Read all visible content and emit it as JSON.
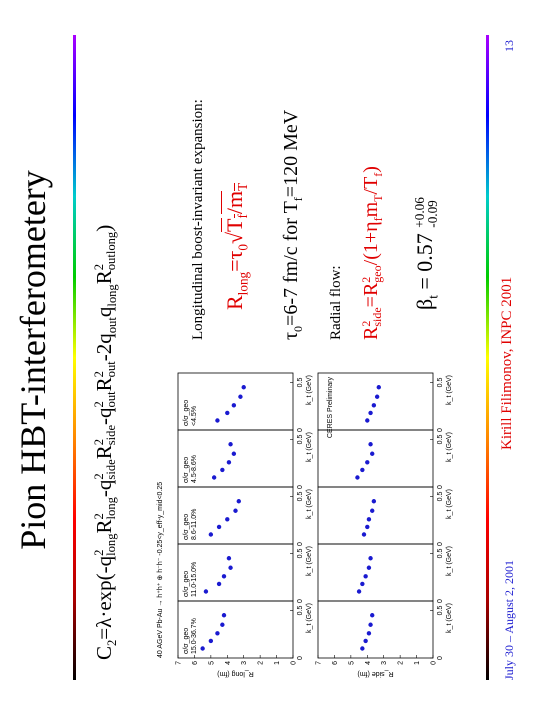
{
  "title": "Pion HBT-interferometery",
  "formula": [
    {
      "t": "C"
    },
    {
      "sub": "2"
    },
    {
      "t": "=λ·exp(-q"
    },
    {
      "sup": "2",
      "sub": "long"
    },
    {
      "t": "R"
    },
    {
      "sup": "2",
      "sub": "long"
    },
    {
      "t": "-q"
    },
    {
      "sup": "2",
      "sub": "side"
    },
    {
      "t": "R"
    },
    {
      "sup": "2",
      "sub": "side"
    },
    {
      "t": "-q"
    },
    {
      "sup": "2",
      "sub": "out"
    },
    {
      "t": "R"
    },
    {
      "sup": "2",
      "sub": "out"
    },
    {
      "t": "-2q"
    },
    {
      "sub": "out"
    },
    {
      "t": "q"
    },
    {
      "sub": "long"
    },
    {
      "t": "R"
    },
    {
      "sup": "2",
      "sub": "outlong"
    },
    {
      "t": ")"
    }
  ],
  "right_text": {
    "heading1": "Longitudinal boost-invariant expansion:",
    "rlong": [
      {
        "t": "R"
      },
      {
        "sub": "long"
      },
      {
        "t": "=τ"
      },
      {
        "sub": "0"
      },
      {
        "t": "√"
      },
      {
        "t": "T",
        "over": true
      },
      {
        "sub": "f",
        "over": true
      },
      {
        "t": "/m",
        "over": true
      },
      {
        "sub": "T",
        "over": true
      }
    ],
    "tau": [
      {
        "t": "τ"
      },
      {
        "sub": "0"
      },
      {
        "t": "=6-7 fm/c for T"
      },
      {
        "sub": "f"
      },
      {
        "t": "=120 MeV"
      }
    ],
    "heading2": "Radial flow:",
    "rside": [
      {
        "t": "R"
      },
      {
        "sup": "2",
        "sub": "side"
      },
      {
        "t": "=R"
      },
      {
        "sup": "2",
        "sub": "geo"
      },
      {
        "t": "/(1+η"
      },
      {
        "sub": "f"
      },
      {
        "t": "m"
      },
      {
        "sub": "T"
      },
      {
        "t": "/T"
      },
      {
        "sub": "f"
      },
      {
        "t": ")"
      }
    ],
    "beta": [
      {
        "t": "β"
      },
      {
        "sub": "t"
      },
      {
        "t": " = 0.57 "
      },
      {
        "sup": "+0.06",
        "sub": "-0.09"
      }
    ]
  },
  "footer": {
    "date": "July 30 – August 2, 2001",
    "author": "Kirill Filimonov, INPC 2001",
    "page": "13"
  },
  "chart_data": [
    {
      "type": "scatter",
      "title": "40 AGeV Pb-Au → h⁺h⁺ ⊕ h⁻h⁻  -0.25<y_eff-y_mid<0.25",
      "ylabel": "R_long (fm)",
      "label_title": "σ/σ_geo",
      "label": "15.0-36.7%",
      "xlabel": "k_t (GeV)",
      "x": [
        0.1,
        0.18,
        0.26,
        0.35,
        0.45
      ],
      "values": [
        5.5,
        5.0,
        4.6,
        4.3,
        4.2
      ],
      "color": "#1a1ad0",
      "xlim": [
        0,
        0.6
      ],
      "ylim": [
        0,
        7
      ],
      "xticks": [
        0,
        0.5
      ],
      "yticks": [
        0,
        1,
        2,
        3,
        4,
        5,
        6,
        7
      ]
    },
    {
      "type": "scatter",
      "label_title": "σ/σ_geo",
      "label": "11.0-15.0%",
      "xlabel": "k_t (GeV)",
      "x": [
        0.1,
        0.18,
        0.26,
        0.35,
        0.45
      ],
      "values": [
        5.3,
        4.5,
        4.2,
        3.8,
        3.9
      ],
      "color": "#1a1ad0",
      "xlim": [
        0,
        0.6
      ],
      "ylim": [
        0,
        7
      ],
      "xticks": [
        0,
        0.5
      ]
    },
    {
      "type": "scatter",
      "label_title": "σ/σ_geo",
      "label": "8.6-11.0%",
      "xlabel": "k_t (GeV)",
      "x": [
        0.1,
        0.18,
        0.26,
        0.35,
        0.45
      ],
      "values": [
        5.0,
        4.5,
        4.0,
        3.5,
        3.3
      ],
      "color": "#1a1ad0",
      "xlim": [
        0,
        0.6
      ],
      "ylim": [
        0,
        7
      ],
      "xticks": [
        0,
        0.5
      ]
    },
    {
      "type": "scatter",
      "label_title": "σ/σ_geo",
      "label": "4.5-8.6%",
      "xlabel": "k_t (GeV)",
      "x": [
        0.1,
        0.18,
        0.26,
        0.35,
        0.45
      ],
      "values": [
        4.8,
        4.3,
        3.9,
        3.6,
        3.8
      ],
      "color": "#1a1ad0",
      "xlim": [
        0,
        0.6
      ],
      "ylim": [
        0,
        7
      ],
      "xticks": [
        0,
        0.5
      ]
    },
    {
      "type": "scatter",
      "label_title": "σ/σ_geo",
      "label": "<4.5%",
      "xlabel": "k_t (GeV)",
      "x": [
        0.1,
        0.18,
        0.26,
        0.35,
        0.45
      ],
      "values": [
        4.6,
        4.0,
        3.6,
        3.2,
        3.0
      ],
      "color": "#1a1ad0",
      "xlim": [
        0,
        0.6
      ],
      "ylim": [
        0,
        7
      ],
      "xticks": [
        0,
        0.5
      ]
    },
    {
      "type": "scatter",
      "ylabel": "R_side (fm)",
      "xlabel": "k_t (GeV)",
      "x": [
        0.1,
        0.18,
        0.26,
        0.35,
        0.45
      ],
      "values": [
        4.3,
        4.1,
        3.9,
        3.8,
        3.7
      ],
      "color": "#1a1ad0",
      "xlim": [
        0,
        0.6
      ],
      "ylim": [
        0,
        7
      ],
      "xticks": [
        0,
        0.5
      ],
      "yticks": [
        0,
        1,
        2,
        3,
        4,
        5,
        6,
        7
      ]
    },
    {
      "type": "scatter",
      "xlabel": "k_t (GeV)",
      "x": [
        0.1,
        0.18,
        0.26,
        0.35,
        0.45
      ],
      "values": [
        4.5,
        4.3,
        4.1,
        3.9,
        3.8
      ],
      "color": "#1a1ad0",
      "xlim": [
        0,
        0.6
      ],
      "ylim": [
        0,
        7
      ],
      "xticks": [
        0,
        0.5
      ]
    },
    {
      "type": "scatter",
      "xlabel": "k_t (GeV)",
      "x": [
        0.1,
        0.18,
        0.26,
        0.35,
        0.45
      ],
      "values": [
        4.2,
        4.0,
        3.9,
        3.7,
        3.6
      ],
      "color": "#1a1ad0",
      "xlim": [
        0,
        0.6
      ],
      "ylim": [
        0,
        7
      ],
      "xticks": [
        0,
        0.5
      ]
    },
    {
      "type": "scatter",
      "xlabel": "k_t (GeV)",
      "x": [
        0.1,
        0.18,
        0.26,
        0.35,
        0.45
      ],
      "values": [
        4.6,
        4.3,
        4.0,
        3.7,
        3.8
      ],
      "color": "#1a1ad0",
      "xlim": [
        0,
        0.6
      ],
      "ylim": [
        0,
        7
      ],
      "xticks": [
        0,
        0.5
      ]
    },
    {
      "type": "scatter",
      "annotation": "CERES Preliminary",
      "xlabel": "k_t (GeV)",
      "x": [
        0.1,
        0.18,
        0.26,
        0.35,
        0.45
      ],
      "values": [
        4.0,
        3.8,
        3.6,
        3.4,
        3.3
      ],
      "color": "#1a1ad0",
      "xlim": [
        0,
        0.6
      ],
      "ylim": [
        0,
        7
      ],
      "xticks": [
        0,
        0.5
      ]
    }
  ]
}
